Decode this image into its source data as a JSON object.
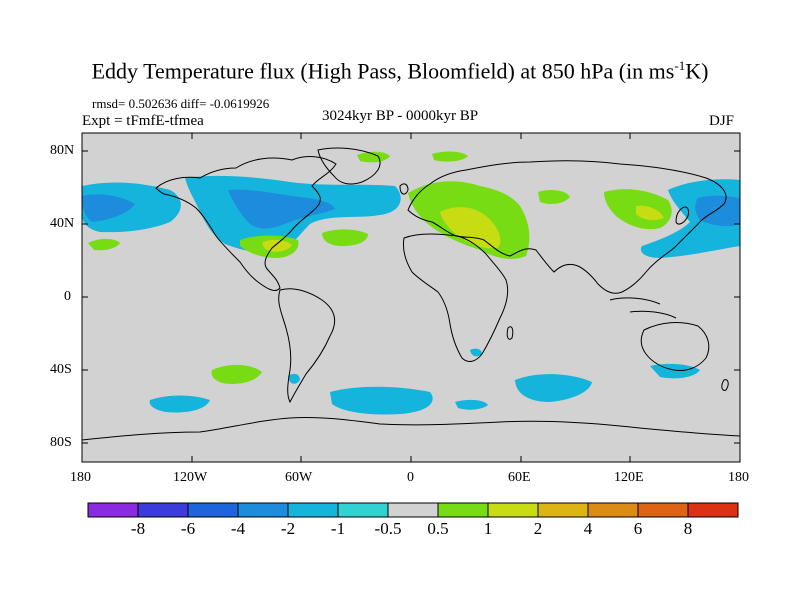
{
  "title": {
    "main_before": "Eddy Temperature flux (High Pass, Bloomfield) at 850 hPa (in ms",
    "superscript": "-1",
    "main_after": "K)"
  },
  "stats": "rmsd= 0.502636 diff= -0.0619926",
  "expt": "Expt = tFmfE-tfmea",
  "period": "3024kyr BP - 0000kyr BP",
  "season": "DJF",
  "axes": {
    "y_ticks": [
      "80N",
      "40N",
      "0",
      "40S",
      "80S"
    ],
    "x_ticks": [
      "180",
      "120W",
      "60W",
      "0",
      "60E",
      "120E",
      "180"
    ]
  },
  "colors": {
    "background": "#d2d2d2",
    "coastline": "#000000"
  },
  "colorbar": {
    "colors": [
      "#8a2be2",
      "#3c3cdc",
      "#1e64dc",
      "#1e8cdc",
      "#14b4dc",
      "#32d2d2",
      "#d2d2d2",
      "#78dc14",
      "#c8dc14",
      "#dcb414",
      "#dc8c14",
      "#dc6414",
      "#dc3214"
    ],
    "labels": [
      "-8",
      "-6",
      "-4",
      "-2",
      "-1",
      "-0.5",
      "0.5",
      "1",
      "2",
      "4",
      "6",
      "8"
    ]
  }
}
